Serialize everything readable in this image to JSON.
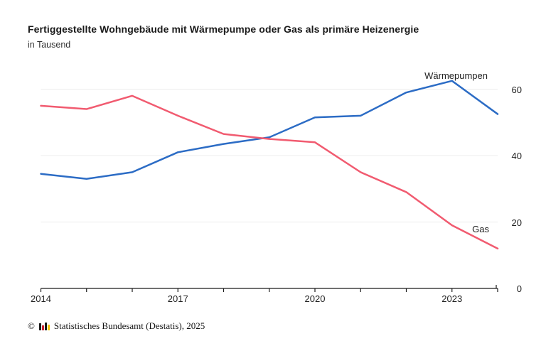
{
  "header": {
    "title": "Fertiggestellte Wohngebäude mit Wärmepumpe oder Gas als primäre Heizenergie",
    "subtitle": "in Tausend"
  },
  "footer": {
    "copyright": "©",
    "logo": "destatis-mini-bar-chart-icon",
    "source": "Statistisches Bundesamt (Destatis), 2025"
  },
  "colors": {
    "waermepumpen_line": "#2c6cc5",
    "gas_line": "#f15b70",
    "gridline": "#ececec",
    "axis": "#1a1a1a",
    "text": "#222222"
  },
  "chart_data": {
    "type": "line",
    "title": "Fertiggestellte Wohngebäude mit Wärmepumpe oder Gas als primäre Heizenergie",
    "subtitle": "in Tausend",
    "ylabel": "in Tausend",
    "x": [
      2014,
      2015,
      2016,
      2017,
      2018,
      2019,
      2020,
      2021,
      2022,
      2023,
      2024
    ],
    "x_tick_labels": [
      "2014",
      "2017",
      "2020",
      "2023"
    ],
    "x_labeled_years": [
      2014,
      2017,
      2020,
      2023
    ],
    "series": [
      {
        "name": "Wärmepumpen",
        "color": "#2c6cc5",
        "values": [
          34.5,
          33,
          35,
          41,
          43.5,
          45.5,
          51.5,
          52,
          59,
          62.5,
          52.5
        ]
      },
      {
        "name": "Gas",
        "color": "#f15b70",
        "values": [
          55,
          54,
          58,
          52,
          46.5,
          45,
          44,
          35,
          29,
          19,
          12
        ]
      }
    ],
    "ylim": [
      0,
      65
    ],
    "y_ticks": [
      0,
      20,
      40,
      60
    ],
    "y_tick_labels": [
      "0",
      "20",
      "40",
      "60"
    ],
    "grid": "horizontal-only",
    "legend_position": "inline-line-end-labels",
    "y_axis_side": "right"
  }
}
